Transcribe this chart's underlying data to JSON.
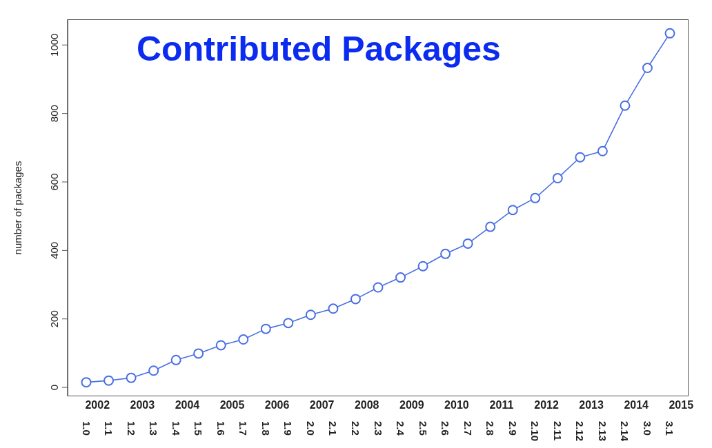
{
  "chart_data": {
    "type": "line",
    "title": "Contributed Packages",
    "ylabel": "number of packages",
    "categories": [
      "1.0",
      "1.1",
      "1.2",
      "1.3",
      "1.4",
      "1.5",
      "1.6",
      "1.7",
      "1.8",
      "1.9",
      "2.0",
      "2.1",
      "2.2",
      "2.3",
      "2.4",
      "2.5",
      "2.6",
      "2.7",
      "2.8",
      "2.9",
      "2.10",
      "2.11",
      "2.12",
      "2.13",
      "2.14",
      "3.0",
      "3.1"
    ],
    "series": [
      {
        "color": "#4a6fe3",
        "values": [
          15,
          20,
          28,
          49,
          80,
          99,
          123,
          140,
          171,
          188,
          212,
          230,
          258,
          292,
          321,
          354,
          390,
          420,
          469,
          518,
          553,
          611,
          672,
          690,
          823,
          933,
          1034
        ]
      }
    ],
    "ylim": [
      -26,
      1075
    ],
    "yticks": [
      0,
      200,
      400,
      600,
      800,
      1000
    ],
    "x2lim": [
      2001.585,
      2015.415
    ],
    "x2ticks": [
      {
        "value": 2002.25,
        "label": "2002"
      },
      {
        "value": 2003.25,
        "label": "2003"
      },
      {
        "value": 2004.25,
        "label": "2004"
      },
      {
        "value": 2005.25,
        "label": "2005"
      },
      {
        "value": 2006.25,
        "label": "2006"
      },
      {
        "value": 2007.25,
        "label": "2007"
      },
      {
        "value": 2008.25,
        "label": "2008"
      },
      {
        "value": 2009.25,
        "label": "2009"
      },
      {
        "value": 2010.25,
        "label": "2010"
      },
      {
        "value": 2011.25,
        "label": "2011"
      },
      {
        "value": 2012.25,
        "label": "2012"
      },
      {
        "value": 2013.25,
        "label": "2013"
      },
      {
        "value": 2014.25,
        "label": "2014"
      },
      {
        "value": 2015.25,
        "label": "2015"
      }
    ],
    "marker": "circle",
    "line_style": "solid",
    "legend": false,
    "grid": false
  }
}
